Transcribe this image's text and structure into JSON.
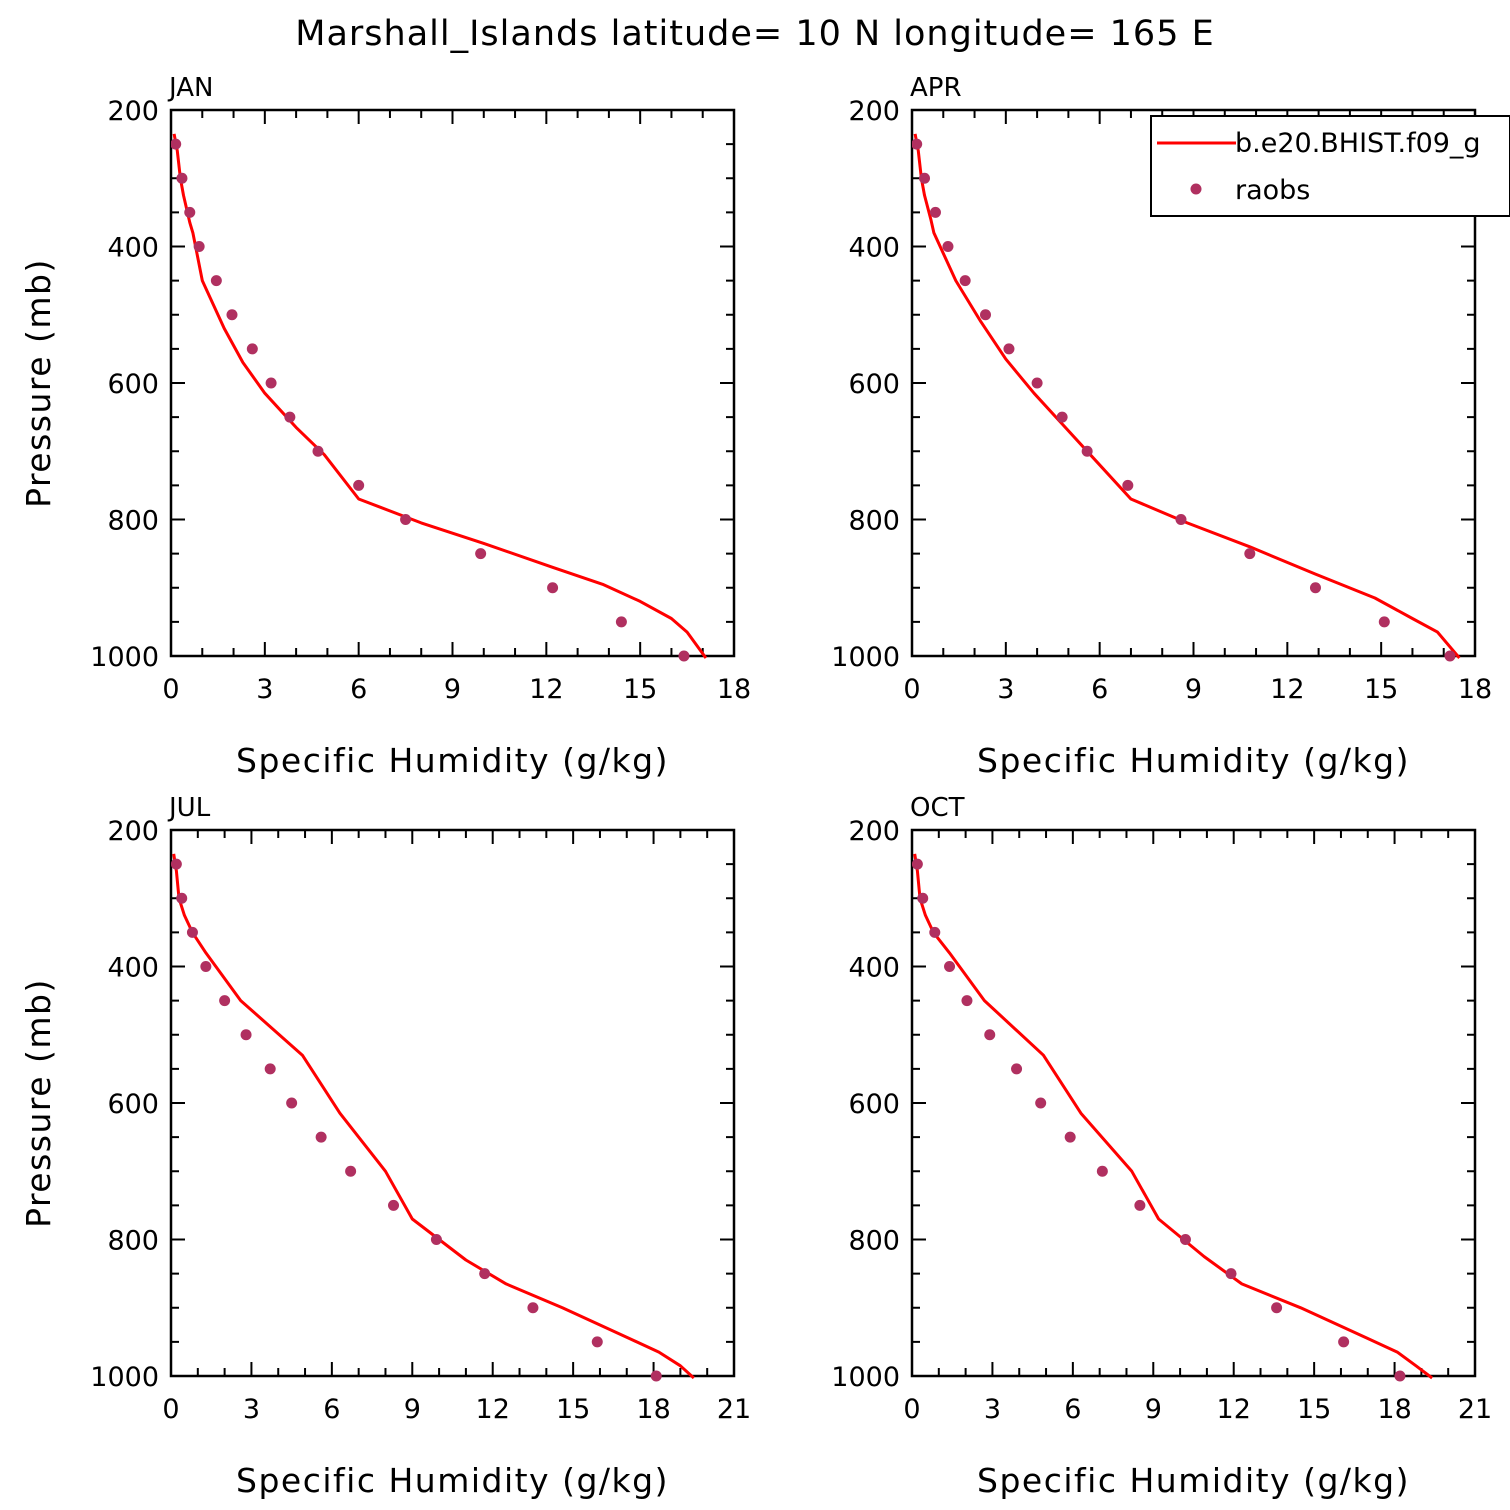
{
  "title": "Marshall_Islands  latitude= 10 N longitude= 165 E",
  "colors": {
    "model": "#ff0000",
    "obs": "#b03060",
    "axes": "#000000"
  },
  "legend": {
    "entries": [
      {
        "label": "b.e20.BHIST.f09_g",
        "style": "line",
        "color": "#ff0000"
      },
      {
        "label": "raobs",
        "style": "marker",
        "color": "#b03060"
      }
    ],
    "placement": "top-right of APR panel"
  },
  "chart_data": [
    {
      "type": "line",
      "panel": "JAN",
      "xlabel": "Specific Humidity (g/kg)",
      "ylabel": "Pressure (mb)",
      "xlim": [
        0,
        18
      ],
      "ylim": [
        1000,
        200
      ],
      "xticks": [
        0,
        3,
        6,
        9,
        12,
        15,
        18
      ],
      "yticks": [
        200,
        400,
        600,
        800,
        1000
      ],
      "series": [
        {
          "name": "b.e20.BHIST.f09_g",
          "style": "line",
          "points": [
            [
              0.1,
              235
            ],
            [
              0.2,
              260
            ],
            [
              0.3,
              300
            ],
            [
              0.4,
              325
            ],
            [
              0.6,
              365
            ],
            [
              0.7,
              380
            ],
            [
              1.0,
              450
            ],
            [
              1.7,
              520
            ],
            [
              2.3,
              570
            ],
            [
              3.0,
              615
            ],
            [
              4.0,
              665
            ],
            [
              4.9,
              705
            ],
            [
              6.0,
              770
            ],
            [
              8.0,
              805
            ],
            [
              10.0,
              835
            ],
            [
              12.2,
              870
            ],
            [
              13.8,
              895
            ],
            [
              15.0,
              920
            ],
            [
              16.0,
              945
            ],
            [
              16.5,
              965
            ],
            [
              17.1,
              1003
            ]
          ]
        },
        {
          "name": "raobs",
          "style": "marker",
          "points": [
            [
              0.15,
              250
            ],
            [
              0.35,
              300
            ],
            [
              0.6,
              350
            ],
            [
              0.9,
              400
            ],
            [
              1.45,
              450
            ],
            [
              1.95,
              500
            ],
            [
              2.6,
              550
            ],
            [
              3.2,
              600
            ],
            [
              3.8,
              650
            ],
            [
              4.7,
              700
            ],
            [
              6.0,
              750
            ],
            [
              7.5,
              800
            ],
            [
              9.9,
              850
            ],
            [
              12.2,
              900
            ],
            [
              14.4,
              950
            ],
            [
              16.4,
              1000
            ]
          ]
        }
      ]
    },
    {
      "type": "line",
      "panel": "APR",
      "xlabel": "Specific Humidity (g/kg)",
      "ylabel": "",
      "xlim": [
        0,
        18
      ],
      "ylim": [
        1000,
        200
      ],
      "xticks": [
        0,
        3,
        6,
        9,
        12,
        15,
        18
      ],
      "yticks": [
        200,
        400,
        600,
        800,
        1000
      ],
      "series": [
        {
          "name": "b.e20.BHIST.f09_g",
          "style": "line",
          "points": [
            [
              0.1,
              235
            ],
            [
              0.2,
              260
            ],
            [
              0.3,
              300
            ],
            [
              0.4,
              325
            ],
            [
              0.6,
              360
            ],
            [
              0.7,
              380
            ],
            [
              1.4,
              450
            ],
            [
              2.2,
              510
            ],
            [
              3.0,
              565
            ],
            [
              3.9,
              615
            ],
            [
              4.8,
              660
            ],
            [
              5.7,
              705
            ],
            [
              7.0,
              770
            ],
            [
              8.8,
              805
            ],
            [
              10.8,
              840
            ],
            [
              12.9,
              880
            ],
            [
              14.8,
              915
            ],
            [
              16.0,
              945
            ],
            [
              16.8,
              965
            ],
            [
              17.5,
              1003
            ]
          ]
        },
        {
          "name": "raobs",
          "style": "marker",
          "points": [
            [
              0.15,
              250
            ],
            [
              0.4,
              300
            ],
            [
              0.75,
              350
            ],
            [
              1.15,
              400
            ],
            [
              1.7,
              450
            ],
            [
              2.35,
              500
            ],
            [
              3.1,
              550
            ],
            [
              4.0,
              600
            ],
            [
              4.8,
              650
            ],
            [
              5.6,
              700
            ],
            [
              6.9,
              750
            ],
            [
              8.6,
              800
            ],
            [
              10.8,
              850
            ],
            [
              12.9,
              900
            ],
            [
              15.1,
              950
            ],
            [
              17.2,
              1000
            ]
          ]
        }
      ]
    },
    {
      "type": "line",
      "panel": "JUL",
      "xlabel": "Specific Humidity (g/kg)",
      "ylabel": "Pressure (mb)",
      "xlim": [
        0,
        21
      ],
      "ylim": [
        1000,
        200
      ],
      "xticks": [
        0,
        3,
        6,
        9,
        12,
        15,
        18,
        21
      ],
      "yticks": [
        200,
        400,
        600,
        800,
        1000
      ],
      "series": [
        {
          "name": "b.e20.BHIST.f09_g",
          "style": "line",
          "points": [
            [
              0.1,
              235
            ],
            [
              0.2,
              260
            ],
            [
              0.3,
              300
            ],
            [
              0.5,
              325
            ],
            [
              0.8,
              350
            ],
            [
              1.3,
              380
            ],
            [
              2.6,
              450
            ],
            [
              4.9,
              530
            ],
            [
              6.3,
              615
            ],
            [
              8.0,
              700
            ],
            [
              9.0,
              770
            ],
            [
              10.0,
              800
            ],
            [
              11.0,
              830
            ],
            [
              12.5,
              865
            ],
            [
              14.6,
              900
            ],
            [
              17.1,
              945
            ],
            [
              18.2,
              965
            ],
            [
              19.0,
              985
            ],
            [
              19.5,
              1003
            ]
          ]
        },
        {
          "name": "raobs",
          "style": "marker",
          "points": [
            [
              0.2,
              250
            ],
            [
              0.4,
              300
            ],
            [
              0.8,
              350
            ],
            [
              1.3,
              400
            ],
            [
              2.0,
              450
            ],
            [
              2.8,
              500
            ],
            [
              3.7,
              550
            ],
            [
              4.5,
              600
            ],
            [
              5.6,
              650
            ],
            [
              6.7,
              700
            ],
            [
              8.3,
              750
            ],
            [
              9.9,
              800
            ],
            [
              11.7,
              850
            ],
            [
              13.5,
              900
            ],
            [
              15.9,
              950
            ],
            [
              18.1,
              1000
            ]
          ]
        }
      ]
    },
    {
      "type": "line",
      "panel": "OCT",
      "xlabel": "Specific Humidity (g/kg)",
      "ylabel": "",
      "xlim": [
        0,
        21
      ],
      "ylim": [
        1000,
        200
      ],
      "xticks": [
        0,
        3,
        6,
        9,
        12,
        15,
        18,
        21
      ],
      "yticks": [
        200,
        400,
        600,
        800,
        1000
      ],
      "series": [
        {
          "name": "b.e20.BHIST.f09_g",
          "style": "line",
          "points": [
            [
              0.1,
              235
            ],
            [
              0.2,
              260
            ],
            [
              0.3,
              300
            ],
            [
              0.5,
              325
            ],
            [
              0.8,
              350
            ],
            [
              1.4,
              380
            ],
            [
              2.7,
              450
            ],
            [
              4.9,
              530
            ],
            [
              6.3,
              615
            ],
            [
              8.2,
              700
            ],
            [
              9.2,
              770
            ],
            [
              10.9,
              825
            ],
            [
              12.3,
              865
            ],
            [
              14.5,
              900
            ],
            [
              17.0,
              945
            ],
            [
              18.1,
              965
            ],
            [
              18.8,
              985
            ],
            [
              19.4,
              1003
            ]
          ]
        },
        {
          "name": "raobs",
          "style": "marker",
          "points": [
            [
              0.2,
              250
            ],
            [
              0.4,
              300
            ],
            [
              0.85,
              350
            ],
            [
              1.4,
              400
            ],
            [
              2.05,
              450
            ],
            [
              2.9,
              500
            ],
            [
              3.9,
              550
            ],
            [
              4.8,
              600
            ],
            [
              5.9,
              650
            ],
            [
              7.1,
              700
            ],
            [
              8.5,
              750
            ],
            [
              10.2,
              800
            ],
            [
              11.9,
              850
            ],
            [
              13.6,
              900
            ],
            [
              16.1,
              950
            ],
            [
              18.2,
              1000
            ]
          ]
        }
      ]
    }
  ]
}
